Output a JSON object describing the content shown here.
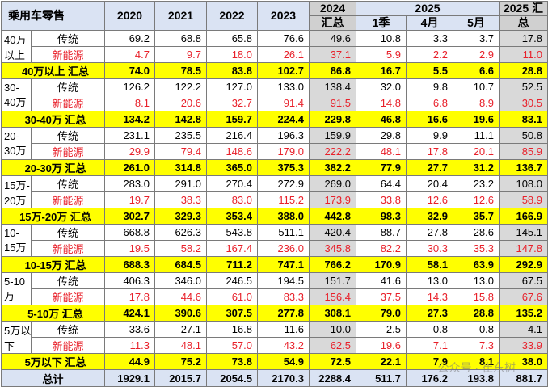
{
  "header": {
    "title": "乘用车零售",
    "years": [
      "2020",
      "2021",
      "2022",
      "2023"
    ],
    "y2024": "2024",
    "y2024_sub": "汇总",
    "y2025": "2025",
    "months": [
      "1季",
      "4月",
      "5月"
    ],
    "y2025_sum": "2025 汇",
    "y2025_sum2": "总"
  },
  "groups": [
    {
      "cat1": "40万",
      "cat2": "以上",
      "rows": [
        {
          "type": "传统",
          "values": [
            "69.2",
            "68.8",
            "65.8",
            "76.6",
            "49.6",
            "10.8",
            "3.3",
            "3.7",
            "17.8"
          ]
        },
        {
          "type": "新能源",
          "values": [
            "4.7",
            "9.7",
            "18.0",
            "26.1",
            "37.1",
            "5.9",
            "2.2",
            "2.9",
            "11.0"
          ]
        }
      ],
      "total_label": "40万以上 汇总",
      "total": [
        "74.0",
        "78.5",
        "83.8",
        "102.7",
        "86.8",
        "16.7",
        "5.5",
        "6.6",
        "28.8"
      ]
    },
    {
      "cat1": "30-",
      "cat2": "40万",
      "rows": [
        {
          "type": "传统",
          "values": [
            "126.2",
            "122.2",
            "127.0",
            "133.0",
            "138.4",
            "32.0",
            "9.8",
            "10.7",
            "52.5"
          ]
        },
        {
          "type": "新能源",
          "values": [
            "8.1",
            "20.6",
            "32.7",
            "91.4",
            "91.5",
            "14.8",
            "6.8",
            "8.9",
            "30.5"
          ]
        }
      ],
      "total_label": "30-40万 汇总",
      "total": [
        "134.2",
        "142.8",
        "159.7",
        "224.4",
        "229.8",
        "46.8",
        "16.6",
        "19.6",
        "83.1"
      ]
    },
    {
      "cat1": "20-",
      "cat2": "30万",
      "rows": [
        {
          "type": "传统",
          "values": [
            "231.1",
            "235.5",
            "216.4",
            "196.3",
            "159.9",
            "29.8",
            "9.9",
            "11.1",
            "50.8"
          ]
        },
        {
          "type": "新能源",
          "values": [
            "29.9",
            "79.4",
            "148.6",
            "179.0",
            "222.2",
            "48.1",
            "17.8",
            "20.1",
            "85.9"
          ]
        }
      ],
      "total_label": "20-30万 汇总",
      "total": [
        "261.0",
        "314.8",
        "365.0",
        "375.3",
        "382.2",
        "77.9",
        "27.7",
        "31.2",
        "136.7"
      ]
    },
    {
      "cat1": "15万-",
      "cat2": "20万",
      "rows": [
        {
          "type": "传统",
          "values": [
            "283.0",
            "291.0",
            "270.4",
            "272.9",
            "269.0",
            "64.4",
            "20.4",
            "23.2",
            "108.0"
          ]
        },
        {
          "type": "新能源",
          "values": [
            "19.7",
            "38.3",
            "83.0",
            "115.2",
            "173.9",
            "33.8",
            "12.6",
            "12.6",
            "58.9"
          ]
        }
      ],
      "total_label": "15万-20万 汇总",
      "total": [
        "302.7",
        "329.3",
        "353.4",
        "388.0",
        "442.8",
        "98.3",
        "32.9",
        "35.7",
        "166.9"
      ]
    },
    {
      "cat1": "10-",
      "cat2": "15万",
      "rows": [
        {
          "type": "传统",
          "values": [
            "668.8",
            "626.3",
            "543.8",
            "511.1",
            "420.4",
            "88.7",
            "27.8",
            "28.6",
            "145.1"
          ]
        },
        {
          "type": "新能源",
          "values": [
            "19.5",
            "58.2",
            "167.4",
            "236.0",
            "345.8",
            "82.2",
            "30.3",
            "35.3",
            "147.8"
          ]
        }
      ],
      "total_label": "10-15万 汇总",
      "total": [
        "688.3",
        "684.5",
        "711.2",
        "747.1",
        "766.2",
        "170.9",
        "58.1",
        "63.9",
        "292.9"
      ]
    },
    {
      "cat1": "5-10",
      "cat2": "万",
      "rows": [
        {
          "type": "传统",
          "values": [
            "406.3",
            "346.0",
            "246.5",
            "194.5",
            "151.7",
            "41.6",
            "13.0",
            "13.0",
            "67.5"
          ]
        },
        {
          "type": "新能源",
          "values": [
            "17.8",
            "44.6",
            "61.0",
            "83.3",
            "156.4",
            "37.5",
            "14.3",
            "15.8",
            "67.6"
          ]
        }
      ],
      "total_label": "5-10万 汇总",
      "total": [
        "424.1",
        "390.6",
        "307.5",
        "277.8",
        "308.1",
        "79.0",
        "27.3",
        "28.8",
        "135.2"
      ]
    },
    {
      "cat1": "5万以",
      "cat2": "下",
      "rows": [
        {
          "type": "传统",
          "values": [
            "33.6",
            "27.1",
            "16.8",
            "11.6",
            "10.0",
            "2.5",
            "0.8",
            "0.8",
            "4.1"
          ]
        },
        {
          "type": "新能源",
          "values": [
            "11.3",
            "48.1",
            "57.0",
            "43.2",
            "62.5",
            "19.6",
            "7.1",
            "7.3",
            "33.9"
          ]
        }
      ],
      "total_label": "5万以下 汇总",
      "total": [
        "44.9",
        "75.2",
        "73.8",
        "54.9",
        "72.5",
        "22.1",
        "7.9",
        "8.1",
        "38.0"
      ]
    }
  ],
  "grand": {
    "label": "总计",
    "values": [
      "1929.1",
      "2015.7",
      "2054.5",
      "2170.3",
      "2288.4",
      "511.7",
      "176.2",
      "193.8",
      "881.7"
    ]
  },
  "watermark": "公众号 · 崔东树"
}
